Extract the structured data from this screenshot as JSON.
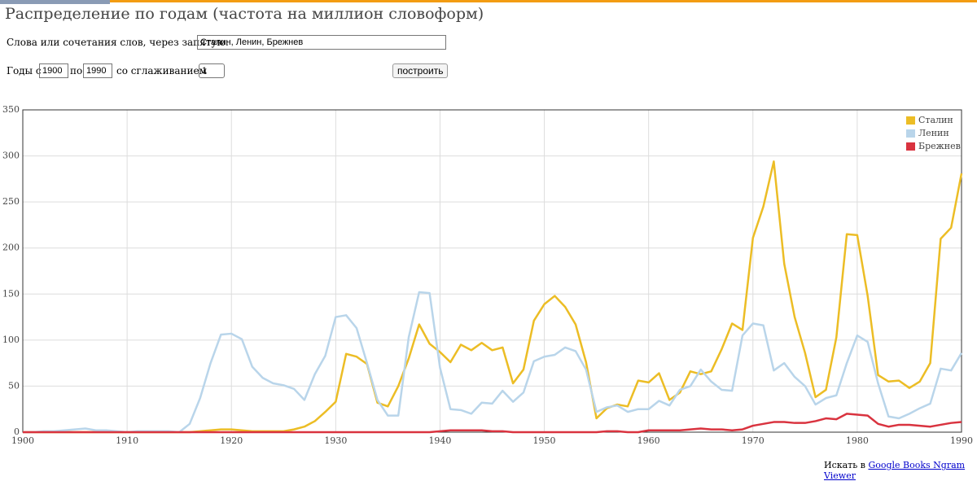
{
  "header": {
    "title": "Распределение по годам (частота на миллион словоформ)"
  },
  "form": {
    "words_label": "Слова или сочетания слов, через запятую:",
    "words_value": "Сталин, Ленин, Брежнев",
    "years_from_label": "Годы с",
    "years_from": "1900",
    "years_to_label": "по",
    "years_to": "1990",
    "smoothing_label": "со сглаживанием",
    "smoothing": "1",
    "button": "построить"
  },
  "footer": {
    "search_label": "Искать в",
    "search_link": "Google Books Ngram Viewer"
  },
  "chart_data": {
    "type": "line",
    "x": [
      1900,
      1901,
      1902,
      1903,
      1904,
      1905,
      1906,
      1907,
      1908,
      1909,
      1910,
      1911,
      1912,
      1913,
      1914,
      1915,
      1916,
      1917,
      1918,
      1919,
      1920,
      1921,
      1922,
      1923,
      1924,
      1925,
      1926,
      1927,
      1928,
      1929,
      1930,
      1931,
      1932,
      1933,
      1934,
      1935,
      1936,
      1937,
      1938,
      1939,
      1940,
      1941,
      1942,
      1943,
      1944,
      1945,
      1946,
      1947,
      1948,
      1949,
      1950,
      1951,
      1952,
      1953,
      1954,
      1955,
      1956,
      1957,
      1958,
      1959,
      1960,
      1961,
      1962,
      1963,
      1964,
      1965,
      1966,
      1967,
      1968,
      1969,
      1970,
      1971,
      1972,
      1973,
      1974,
      1975,
      1976,
      1977,
      1978,
      1979,
      1980,
      1981,
      1982,
      1983,
      1984,
      1985,
      1986,
      1987,
      1988,
      1989,
      1990
    ],
    "series": [
      {
        "name": "Сталин",
        "color": "#ecbd25",
        "values": [
          0,
          0,
          0,
          0,
          0,
          0,
          0,
          0,
          0,
          0,
          0,
          0,
          0,
          0,
          0,
          0,
          0,
          1,
          2,
          3,
          3,
          2,
          1,
          1,
          1,
          1,
          3,
          6,
          12,
          22,
          33,
          85,
          82,
          74,
          32,
          28,
          50,
          80,
          117,
          96,
          87,
          76,
          95,
          89,
          97,
          89,
          92,
          53,
          68,
          121,
          139,
          148,
          136,
          117,
          76,
          15,
          26,
          30,
          28,
          56,
          54,
          64,
          35,
          43,
          66,
          63,
          66,
          90,
          118,
          111,
          211,
          245,
          294,
          183,
          125,
          86,
          38,
          46,
          103,
          215,
          214,
          148,
          62,
          55,
          56,
          48,
          55,
          75,
          210,
          222,
          281
        ]
      },
      {
        "name": "Ленин",
        "color": "#b9d5ea",
        "values": [
          0,
          0,
          1,
          1,
          2,
          3,
          4,
          2,
          2,
          1,
          0,
          1,
          1,
          1,
          1,
          0,
          9,
          37,
          75,
          106,
          107,
          101,
          71,
          59,
          53,
          51,
          47,
          35,
          63,
          83,
          125,
          127,
          113,
          75,
          35,
          18,
          18,
          103,
          152,
          151,
          70,
          25,
          24,
          20,
          32,
          31,
          45,
          33,
          43,
          77,
          82,
          84,
          92,
          88,
          68,
          22,
          27,
          29,
          22,
          25,
          25,
          34,
          29,
          46,
          50,
          68,
          55,
          46,
          45,
          105,
          118,
          116,
          67,
          75,
          60,
          50,
          30,
          37,
          40,
          75,
          105,
          98,
          53,
          17,
          15,
          20,
          26,
          31,
          69,
          67,
          86
        ]
      },
      {
        "name": "Брежнев",
        "color": "#d9333f",
        "values": [
          0,
          0,
          0,
          0,
          0,
          0,
          0,
          0,
          0,
          0,
          0,
          0,
          0,
          0,
          0,
          0,
          0,
          0,
          0,
          0,
          0,
          0,
          0,
          0,
          0,
          0,
          0,
          0,
          0,
          0,
          0,
          0,
          0,
          0,
          0,
          0,
          0,
          0,
          0,
          0,
          1,
          2,
          2,
          2,
          2,
          1,
          1,
          0,
          0,
          0,
          0,
          0,
          0,
          0,
          0,
          0,
          1,
          1,
          0,
          0,
          2,
          2,
          2,
          2,
          3,
          4,
          3,
          3,
          2,
          3,
          7,
          9,
          11,
          11,
          10,
          10,
          12,
          15,
          14,
          20,
          19,
          18,
          9,
          6,
          8,
          8,
          7,
          6,
          8,
          10,
          11
        ]
      }
    ],
    "xlim": [
      1900,
      1990
    ],
    "xticks": [
      1900,
      1910,
      1920,
      1930,
      1940,
      1950,
      1960,
      1970,
      1980,
      1990
    ],
    "ylim": [
      0,
      350
    ],
    "yticks": [
      0,
      50,
      100,
      150,
      200,
      250,
      300,
      350
    ],
    "grid": true,
    "legend": "top-right"
  }
}
